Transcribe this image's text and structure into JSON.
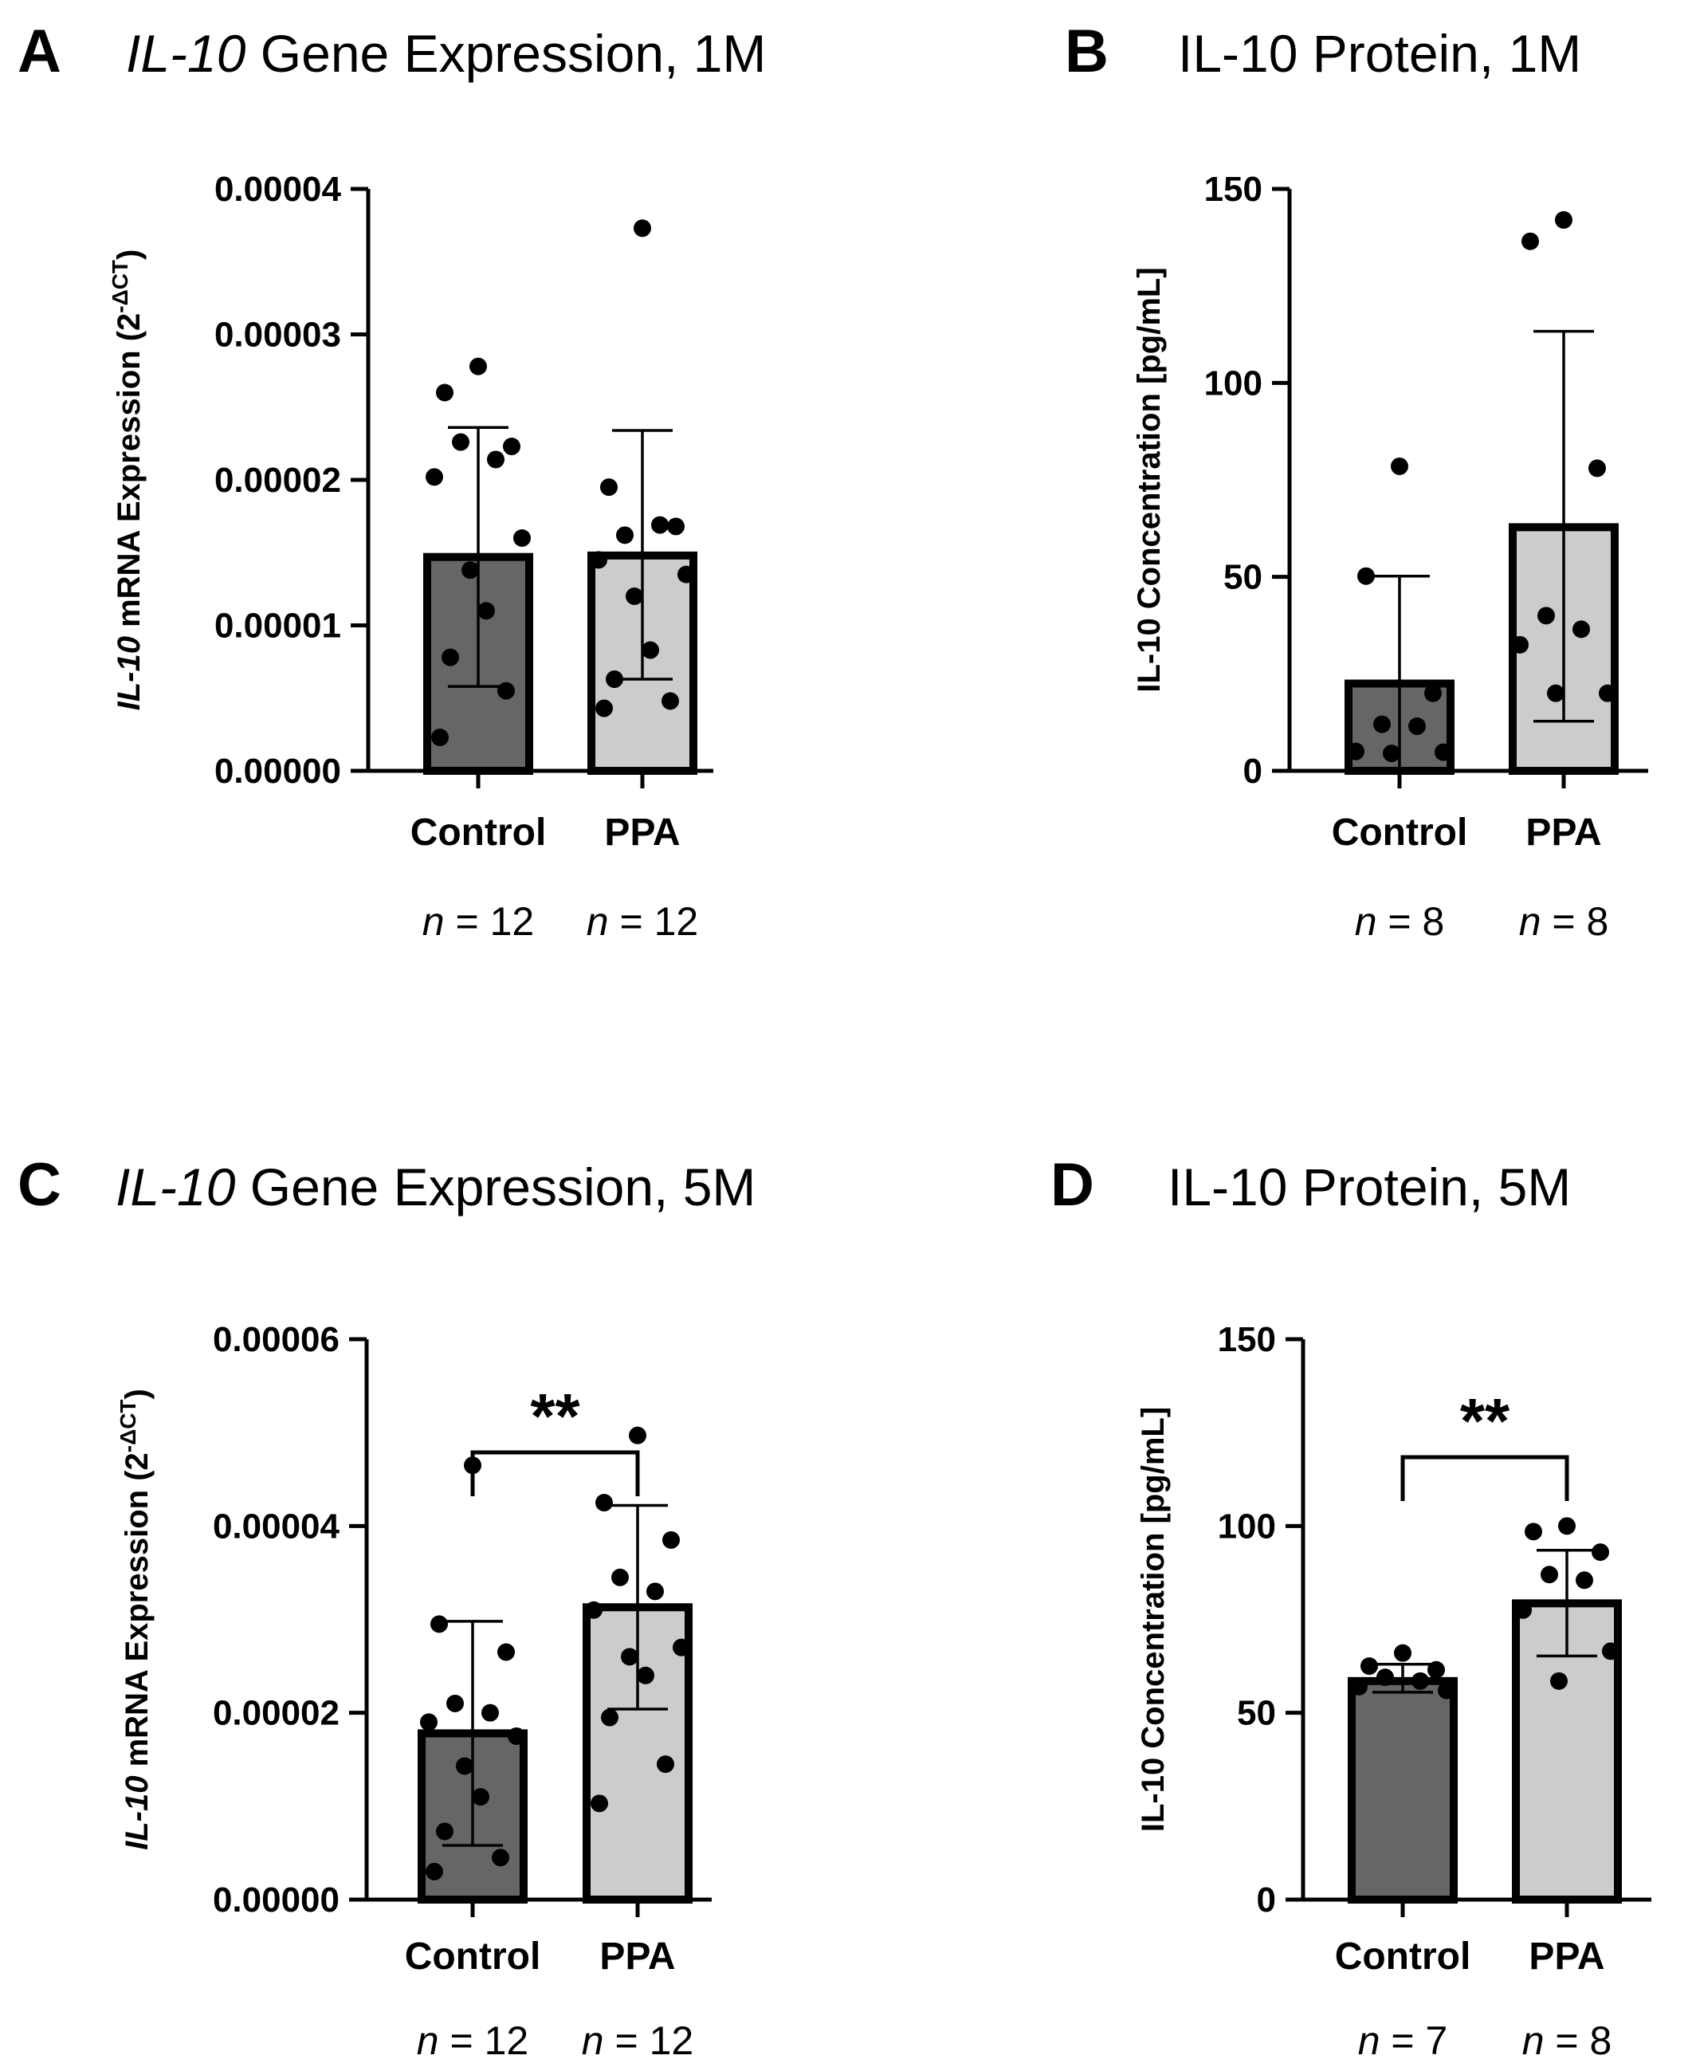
{
  "chart_data": [
    {
      "id": "A",
      "type": "bar",
      "panel_letter": "A",
      "title_italic": "IL-10",
      "title_rest": " Gene Expression, 1M",
      "ylabel_italic": "IL-10",
      "ylabel_rest": " mRNA Expression  (2",
      "ylabel_sup": "-ΔCT",
      "ylabel_close": ")",
      "ylim": [
        0,
        4e-05
      ],
      "ticks": [
        0,
        1e-05,
        2e-05,
        3e-05,
        4e-05
      ],
      "tick_labels": [
        "0.00000",
        "0.00001",
        "0.00002",
        "0.00003",
        "0.00004"
      ],
      "categories": [
        "Control",
        "PPA"
      ],
      "n_prefix": "n",
      "n_labels": [
        " = 12",
        " = 12"
      ],
      "means": [
        1.47e-05,
        1.48e-05
      ],
      "err_upper": [
        2.36e-05,
        2.34e-05
      ],
      "err_lower": [
        5.8e-06,
        6.3e-06
      ],
      "fill_colors": [
        "#666666",
        "#cccccc"
      ],
      "points": [
        [
          2.78e-05,
          2.6e-05,
          2.23e-05,
          2.26e-05,
          2.14e-05,
          2.02e-05,
          1.6e-05,
          1.38e-05,
          1.1e-05,
          7.8e-06,
          5.5e-06,
          2.3e-06
        ],
        [
          3.73e-05,
          1.95e-05,
          1.68e-05,
          1.62e-05,
          1.69e-05,
          1.45e-05,
          1.35e-05,
          1.2e-05,
          8.3e-06,
          6.3e-06,
          4.8e-06,
          4.3e-06
        ]
      ],
      "significance": ""
    },
    {
      "id": "B",
      "type": "bar",
      "panel_letter": "B",
      "title_italic": "",
      "title_rest": "IL-10 Protein, 1M",
      "ylabel_italic": "",
      "ylabel_rest": "IL-10 Concentration [pg/mL]",
      "ylabel_sup": "",
      "ylabel_close": "",
      "ylim": [
        0,
        150
      ],
      "ticks": [
        0,
        50,
        100,
        150
      ],
      "tick_labels": [
        "0",
        "50",
        "100",
        "150"
      ],
      "categories": [
        "Control",
        "PPA"
      ],
      "n_prefix": "n",
      "n_labels": [
        " = 8",
        " = 8"
      ],
      "means": [
        22.5,
        62.8
      ],
      "err_upper": [
        50.2,
        113.3
      ],
      "err_lower": [
        0,
        12.8
      ],
      "fill_colors": [
        "#666666",
        "#cccccc"
      ],
      "points": [
        [
          78.5,
          50.2,
          20.0,
          12.0,
          11.5,
          5.0,
          4.8,
          4.5
        ],
        [
          142.0,
          136.5,
          78.0,
          40.0,
          36.5,
          32.5,
          20.0,
          20.0
        ]
      ],
      "significance": ""
    },
    {
      "id": "C",
      "type": "bar",
      "panel_letter": "C",
      "title_italic": "IL-10",
      "title_rest": " Gene Expression, 5M",
      "ylabel_italic": "IL-10",
      "ylabel_rest": " mRNA Expression  (2",
      "ylabel_sup": "-ΔCT",
      "ylabel_close": ")",
      "ylim": [
        0,
        6e-05
      ],
      "ticks": [
        0,
        2e-05,
        4e-05,
        6e-05
      ],
      "tick_labels": [
        "0.00000",
        "0.00002",
        "0.00004",
        "0.00006"
      ],
      "categories": [
        "Control",
        "PPA"
      ],
      "n_prefix": "n",
      "n_labels": [
        " = 12",
        " = 12"
      ],
      "means": [
        1.78e-05,
        3.13e-05
      ],
      "err_upper": [
        2.98e-05,
        4.22e-05
      ],
      "err_lower": [
        5.8e-06,
        2.04e-05
      ],
      "fill_colors": [
        "#666666",
        "#cccccc"
      ],
      "points": [
        [
          4.65e-05,
          2.95e-05,
          2.65e-05,
          2.1e-05,
          2e-05,
          1.9e-05,
          1.75e-05,
          1.43e-05,
          1.1e-05,
          7.3e-06,
          4.5e-06,
          3e-06
        ],
        [
          4.97e-05,
          4.25e-05,
          3.85e-05,
          3.45e-05,
          3.3e-05,
          3.1e-05,
          2.7e-05,
          2.6e-05,
          2.4e-05,
          1.95e-05,
          1.45e-05,
          1.03e-05
        ]
      ],
      "significance": "**"
    },
    {
      "id": "D",
      "type": "bar",
      "panel_letter": "D",
      "title_italic": "",
      "title_rest": "IL-10 Protein, 5M",
      "ylabel_italic": "",
      "ylabel_rest": "IL-10 Concentration [pg/mL]",
      "ylabel_sup": "",
      "ylabel_close": "",
      "ylim": [
        0,
        150
      ],
      "ticks": [
        0,
        50,
        100,
        150
      ],
      "tick_labels": [
        "0",
        "50",
        "100",
        "150"
      ],
      "categories": [
        "Control",
        "PPA"
      ],
      "n_prefix": "n",
      "n_labels": [
        " = 7",
        " = 8"
      ],
      "means": [
        58.5,
        79.3
      ],
      "err_upper": [
        63.0,
        93.5
      ],
      "err_lower": [
        55.5,
        65.2
      ],
      "fill_colors": [
        "#666666",
        "#cccccc"
      ],
      "points": [
        [
          66.0,
          62.5,
          61.5,
          59.5,
          58.5,
          57.0,
          56.0
        ],
        [
          100.0,
          98.5,
          93.0,
          87.0,
          85.5,
          77.5,
          66.5,
          58.5
        ]
      ],
      "significance": "**"
    }
  ]
}
